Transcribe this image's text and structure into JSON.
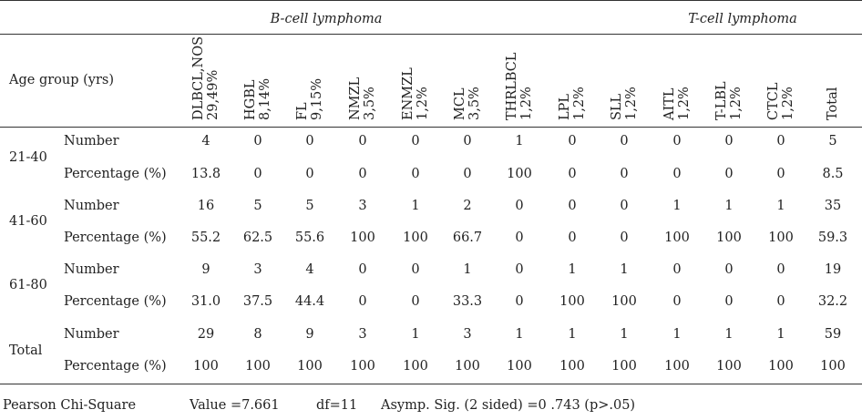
{
  "table": {
    "groups": {
      "b_cell": "B-cell lymphoma",
      "t_cell": "T-cell lymphoma"
    },
    "age_header": "Age group (yrs)",
    "columns": [
      {
        "l1": "DLBCL,NOS",
        "l2": "29,49%"
      },
      {
        "l1": "HGBL",
        "l2": "8,14%"
      },
      {
        "l1": "FL",
        "l2": "9,15%"
      },
      {
        "l1": "NMZL",
        "l2": "3,5%"
      },
      {
        "l1": "ENMZL",
        "l2": "1,2%"
      },
      {
        "l1": "MCL",
        "l2": "3,5%"
      },
      {
        "l1": "THRLBCL",
        "l2": "1,2%"
      },
      {
        "l1": "LPL",
        "l2": "1,2%"
      },
      {
        "l1": "SLL",
        "l2": "1,2%"
      },
      {
        "l1": "AITL",
        "l2": "1,2%"
      },
      {
        "l1": "T-LBL",
        "l2": "1,2%"
      },
      {
        "l1": "CTCL",
        "l2": "1,2%"
      },
      {
        "l1": "Total",
        "l2": ""
      }
    ],
    "age_groups": [
      {
        "label": "21-40",
        "rows": [
          {
            "label": "Number",
            "values": [
              "4",
              "0",
              "0",
              "0",
              "0",
              "0",
              "1",
              "0",
              "0",
              "0",
              "0",
              "0",
              "5"
            ]
          },
          {
            "label": "Percentage (%)",
            "values": [
              "13.8",
              "0",
              "0",
              "0",
              "0",
              "0",
              "100",
              "0",
              "0",
              "0",
              "0",
              "0",
              "8.5"
            ]
          }
        ]
      },
      {
        "label": "41-60",
        "rows": [
          {
            "label": "Number",
            "values": [
              "16",
              "5",
              "5",
              "3",
              "1",
              "2",
              "0",
              "0",
              "0",
              "1",
              "1",
              "1",
              "35"
            ]
          },
          {
            "label": "Percentage (%)",
            "values": [
              "55.2",
              "62.5",
              "55.6",
              "100",
              "100",
              "66.7",
              "0",
              "0",
              "0",
              "100",
              "100",
              "100",
              "59.3"
            ]
          }
        ]
      },
      {
        "label": "61-80",
        "rows": [
          {
            "label": "Number",
            "values": [
              "9",
              "3",
              "4",
              "0",
              "0",
              "1",
              "0",
              "1",
              "1",
              "0",
              "0",
              "0",
              "19"
            ]
          },
          {
            "label": "Percentage (%)",
            "values": [
              "31.0",
              "37.5",
              "44.4",
              "0",
              "0",
              "33.3",
              "0",
              "100",
              "100",
              "0",
              "0",
              "0",
              "32.2"
            ]
          }
        ]
      },
      {
        "label": "Total",
        "rows": [
          {
            "label": "Number",
            "values": [
              "29",
              "8",
              "9",
              "3",
              "1",
              "3",
              "1",
              "1",
              "1",
              "1",
              "1",
              "1",
              "59"
            ]
          },
          {
            "label": "Percentage (%)",
            "values": [
              "100",
              "100",
              "100",
              "100",
              "100",
              "100",
              "100",
              "100",
              "100",
              "100",
              "100",
              "100",
              "100"
            ]
          }
        ]
      }
    ]
  },
  "footer": {
    "test": "Pearson Chi-Square",
    "value": "Value =7.661",
    "df": "df=11",
    "sig": "Asymp. Sig. (2 sided) =0 .743 (p>.05)"
  }
}
